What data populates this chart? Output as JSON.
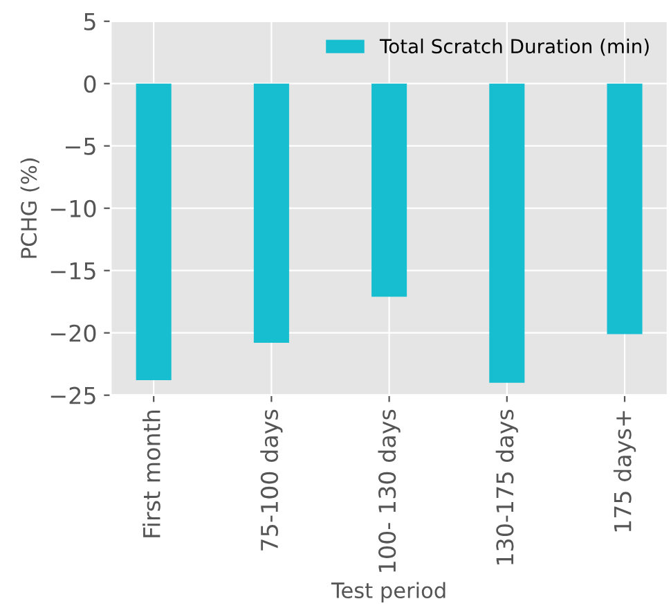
{
  "chart_data": {
    "type": "bar",
    "xlabel": "Test period",
    "ylabel": "PCHG (%)",
    "categories": [
      "First month",
      "75-100 days",
      "100- 130 days",
      "130-175 days",
      "175 days+"
    ],
    "series": [
      {
        "name": "Total Scratch Duration (min)",
        "color": "#17becf",
        "values": [
          -23.8,
          -20.8,
          -17.1,
          -24.0,
          -20.1
        ]
      }
    ],
    "ylim": [
      -25,
      5
    ],
    "yticks": [
      -25,
      -20,
      -15,
      -10,
      -5,
      0,
      5
    ],
    "grid": true,
    "legend": "top right"
  }
}
